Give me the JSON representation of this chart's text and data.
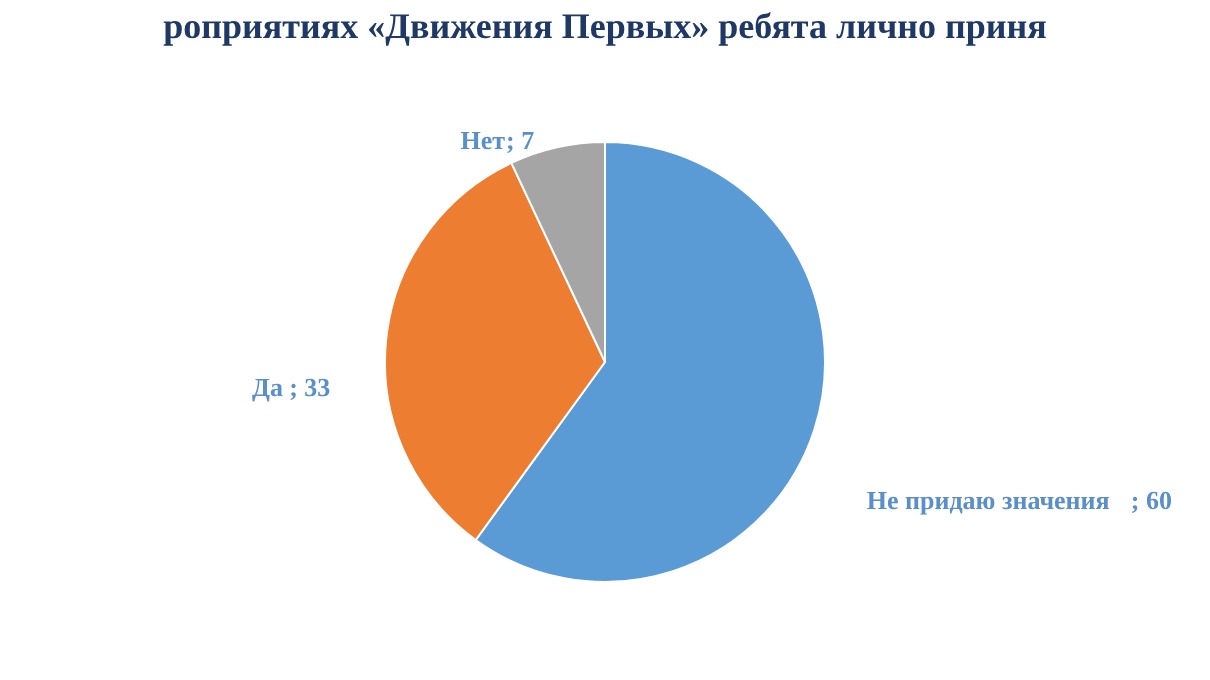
{
  "chart_data": {
    "type": "pie",
    "title": "роприятиях «Движения Первых» ребята лично приня",
    "categories": [
      "Не придаю значения",
      "Да ",
      "Нет"
    ],
    "values": [
      60,
      33,
      7
    ],
    "value_labels": [
      "; 60",
      "; 33",
      "; 7"
    ],
    "colors": [
      "#5b9bd5",
      "#ed7d31",
      "#a5a5a5"
    ],
    "legend": false
  }
}
